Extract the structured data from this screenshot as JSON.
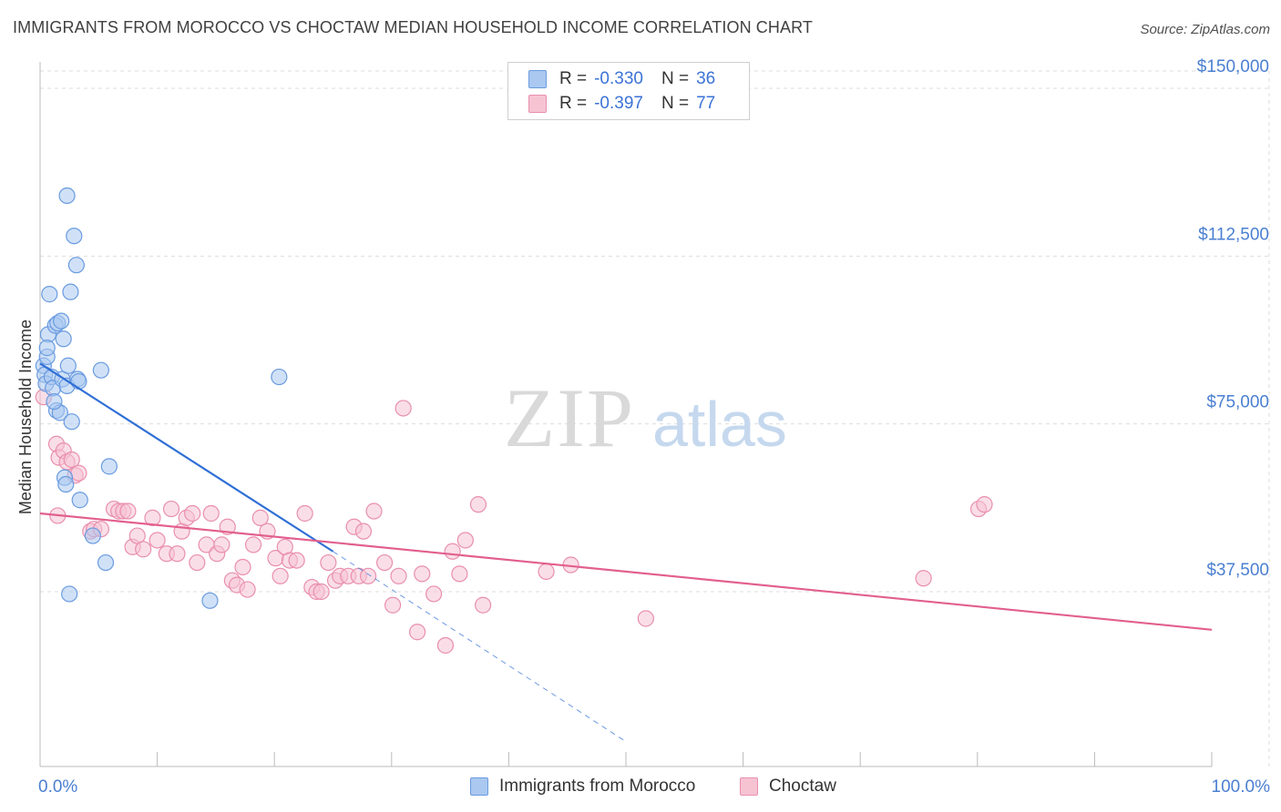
{
  "title": "IMMIGRANTS FROM MOROCCO VS CHOCTAW MEDIAN HOUSEHOLD INCOME CORRELATION CHART",
  "source": "Source: ZipAtlas.com",
  "watermark": {
    "zip": "ZIP",
    "atlas": "atlas"
  },
  "colors": {
    "blue_fill": "#aac8f0",
    "blue_stroke": "#6a9be0",
    "blue_line": "#2f6fd6",
    "pink_fill": "#f6c3d3",
    "pink_stroke": "#e98fae",
    "pink_line": "#e25f8e",
    "tick_label": "#4a7fd1",
    "grid": "#dddddd"
  },
  "legend": {
    "rows": [
      {
        "r_label": "R =",
        "r_value": "-0.330",
        "n_label": "N =",
        "n_value": "36"
      },
      {
        "r_label": "R =",
        "r_value": "-0.397",
        "n_label": "N =",
        "n_value": "77"
      }
    ]
  },
  "bottom_legend": {
    "series1": "Immigrants from Morocco",
    "series2": "Choctaw"
  },
  "chart_data": {
    "type": "scatter",
    "ylabel": "Median Household Income",
    "xlabel": "",
    "xlim": [
      0,
      100
    ],
    "ylim": [
      0,
      160000
    ],
    "y_ticks": [
      {
        "value": 37500,
        "label": "$37,500"
      },
      {
        "value": 75000,
        "label": "$75,000"
      },
      {
        "value": 112500,
        "label": "$112,500"
      },
      {
        "value": 150000,
        "label": "$150,000"
      }
    ],
    "x_tick_labels": {
      "left": "0.0%",
      "right": "100.0%"
    },
    "series": [
      {
        "name": "Immigrants from Morocco",
        "color": "blue",
        "r": -0.33,
        "n": 36,
        "trend": {
          "x0": 0,
          "y0": 88500,
          "x1": 25,
          "y1": 46500,
          "dash_to_x": 50,
          "dash_to_y": 4000
        },
        "points": [
          [
            0.3,
            88000
          ],
          [
            0.4,
            86000
          ],
          [
            0.5,
            84000
          ],
          [
            0.6,
            90000
          ],
          [
            0.7,
            95000
          ],
          [
            0.8,
            104000
          ],
          [
            1.0,
            85500
          ],
          [
            1.1,
            83000
          ],
          [
            1.3,
            97000
          ],
          [
            1.4,
            78000
          ],
          [
            1.5,
            97500
          ],
          [
            1.7,
            77500
          ],
          [
            1.8,
            98000
          ],
          [
            1.9,
            85000
          ],
          [
            2.0,
            94000
          ],
          [
            2.1,
            63000
          ],
          [
            2.2,
            61500
          ],
          [
            2.3,
            83500
          ],
          [
            2.3,
            126000
          ],
          [
            2.4,
            88000
          ],
          [
            2.5,
            37000
          ],
          [
            2.6,
            104500
          ],
          [
            2.7,
            75500
          ],
          [
            2.9,
            117000
          ],
          [
            3.1,
            110500
          ],
          [
            3.2,
            85000
          ],
          [
            3.3,
            84500
          ],
          [
            3.4,
            58000
          ],
          [
            4.5,
            50000
          ],
          [
            5.2,
            87000
          ],
          [
            5.6,
            44000
          ],
          [
            5.9,
            65500
          ],
          [
            14.5,
            35500
          ],
          [
            20.4,
            85500
          ],
          [
            0.6,
            92000
          ],
          [
            1.2,
            80000
          ]
        ]
      },
      {
        "name": "Choctaw",
        "color": "pink",
        "r": -0.397,
        "n": 77,
        "trend": {
          "x0": 0,
          "y0": 55000,
          "x1": 100,
          "y1": 29000
        },
        "points": [
          [
            0.3,
            81000
          ],
          [
            1.4,
            70500
          ],
          [
            1.5,
            54500
          ],
          [
            1.6,
            67500
          ],
          [
            2.0,
            69000
          ],
          [
            2.3,
            66500
          ],
          [
            2.7,
            67000
          ],
          [
            3.0,
            63500
          ],
          [
            3.3,
            64000
          ],
          [
            4.3,
            51000
          ],
          [
            4.6,
            51500
          ],
          [
            5.2,
            51500
          ],
          [
            6.3,
            56000
          ],
          [
            6.7,
            55500
          ],
          [
            7.1,
            55500
          ],
          [
            7.5,
            55500
          ],
          [
            7.9,
            47500
          ],
          [
            8.3,
            50000
          ],
          [
            8.8,
            47000
          ],
          [
            9.6,
            54000
          ],
          [
            10.0,
            49000
          ],
          [
            10.8,
            46000
          ],
          [
            11.2,
            56000
          ],
          [
            11.7,
            46000
          ],
          [
            12.1,
            51000
          ],
          [
            12.5,
            54000
          ],
          [
            13.0,
            55000
          ],
          [
            13.4,
            44000
          ],
          [
            14.2,
            48000
          ],
          [
            14.6,
            55000
          ],
          [
            15.1,
            46000
          ],
          [
            15.5,
            48000
          ],
          [
            16.0,
            52000
          ],
          [
            16.4,
            40000
          ],
          [
            16.8,
            39000
          ],
          [
            17.3,
            43000
          ],
          [
            17.7,
            38000
          ],
          [
            18.2,
            48000
          ],
          [
            18.8,
            54000
          ],
          [
            19.4,
            51000
          ],
          [
            20.1,
            45000
          ],
          [
            20.5,
            41000
          ],
          [
            20.9,
            47500
          ],
          [
            21.3,
            44500
          ],
          [
            21.9,
            44500
          ],
          [
            22.6,
            55000
          ],
          [
            23.2,
            38500
          ],
          [
            23.6,
            37500
          ],
          [
            24.0,
            37500
          ],
          [
            24.6,
            44000
          ],
          [
            25.2,
            40000
          ],
          [
            25.6,
            41000
          ],
          [
            26.3,
            41000
          ],
          [
            26.8,
            52000
          ],
          [
            27.2,
            41000
          ],
          [
            27.6,
            51000
          ],
          [
            28.0,
            41000
          ],
          [
            28.5,
            55500
          ],
          [
            29.4,
            44000
          ],
          [
            30.1,
            34500
          ],
          [
            30.6,
            41000
          ],
          [
            31.0,
            78500
          ],
          [
            32.2,
            28500
          ],
          [
            32.6,
            41500
          ],
          [
            33.6,
            37000
          ],
          [
            34.6,
            25500
          ],
          [
            35.2,
            46500
          ],
          [
            35.8,
            41500
          ],
          [
            36.3,
            49000
          ],
          [
            37.4,
            57000
          ],
          [
            37.8,
            34500
          ],
          [
            43.2,
            42000
          ],
          [
            45.3,
            43500
          ],
          [
            51.7,
            31500
          ],
          [
            75.4,
            40500
          ],
          [
            80.1,
            56000
          ],
          [
            80.6,
            57000
          ]
        ]
      }
    ]
  }
}
